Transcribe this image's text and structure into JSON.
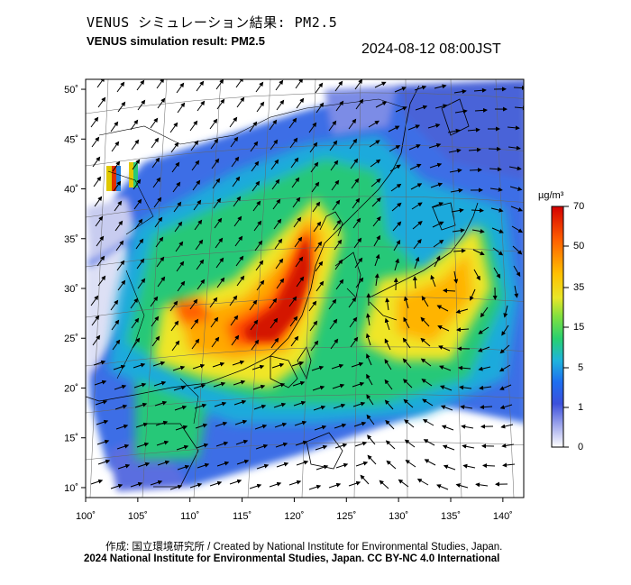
{
  "header": {
    "title_jp": "VENUS シミュレーション結果: PM2.5",
    "title_en": "VENUS simulation result: PM2.5",
    "timestamp": "2024-08-12 08:00JST"
  },
  "map": {
    "lon_range": [
      100,
      142
    ],
    "lat_range": [
      9,
      51
    ],
    "lon_ticks": [
      "100˚",
      "105˚",
      "110˚",
      "115˚",
      "120˚",
      "125˚",
      "130˚",
      "135˚",
      "140˚"
    ],
    "lat_ticks": [
      "50˚",
      "45˚",
      "40˚",
      "35˚",
      "30˚",
      "25˚",
      "20˚",
      "15˚",
      "10˚"
    ],
    "lon_tick_values": [
      100,
      105,
      110,
      115,
      120,
      125,
      130,
      135,
      140
    ],
    "lat_tick_values": [
      50,
      45,
      40,
      35,
      30,
      25,
      20,
      15,
      10
    ],
    "variable": "PM2.5 concentration with wind vectors"
  },
  "colorbar": {
    "unit": "µg/m³",
    "labels": [
      "70",
      "50",
      "35",
      "15",
      "5",
      "1",
      "0"
    ],
    "colors": [
      "#d40000",
      "#ff5a00",
      "#ffb400",
      "#f0e628",
      "#8ee63c",
      "#28d26e",
      "#1eb4dc",
      "#1e78f0",
      "#3c50dc",
      "#8c96e6",
      "#dcdcf5",
      "#ffffff"
    ]
  },
  "footer": {
    "credit": "作成: 国立環境研究所 / Created by National Institute for Environmental Studies, Japan.",
    "copyright": "2024 National Institute for Environmental Studies, Japan. CC BY-NC 4.0 International"
  }
}
